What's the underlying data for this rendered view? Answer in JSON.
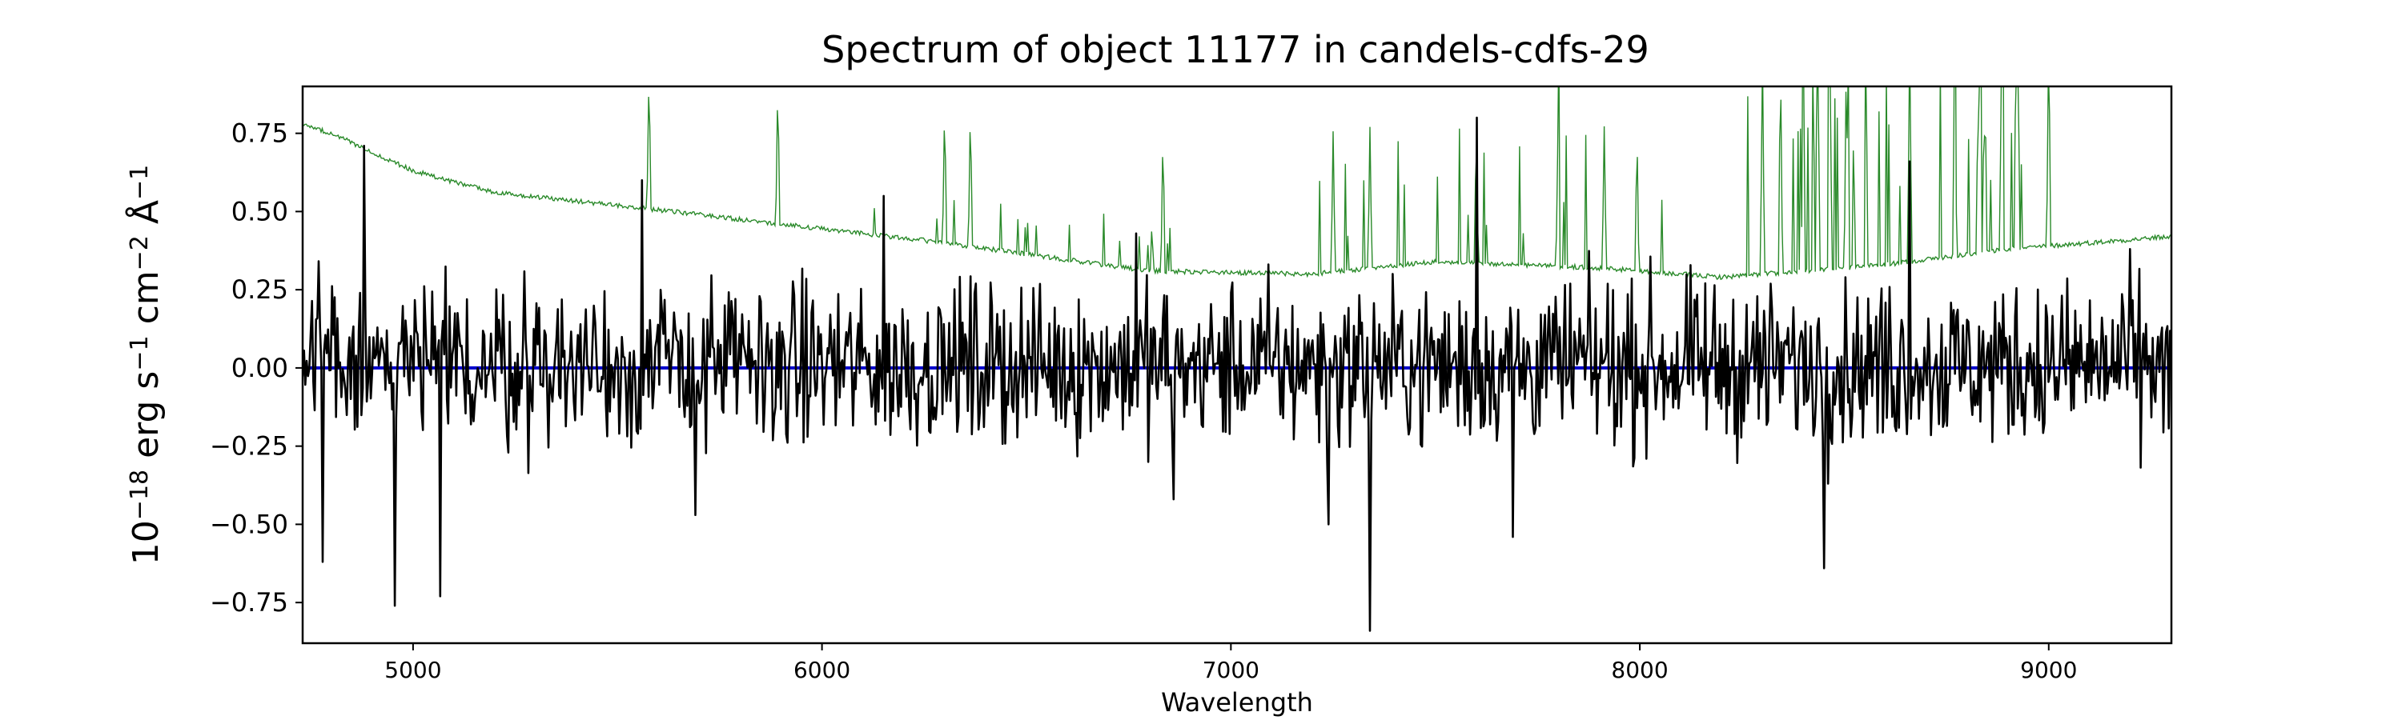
{
  "chart_data": {
    "type": "line",
    "title": "Spectrum of object 11177 in candels-cdfs-29",
    "xlabel": "Wavelength",
    "ylabel_base": "10",
    "ylabel_exp": "−18",
    "ylabel_units": [
      "erg",
      "s",
      "−1",
      "cm",
      "−2",
      "Å",
      "−1"
    ],
    "xlim": [
      4730,
      9300
    ],
    "ylim": [
      -0.88,
      0.9
    ],
    "xticks": [
      5000,
      6000,
      7000,
      8000,
      9000
    ],
    "xtick_labels": [
      "5000",
      "6000",
      "7000",
      "8000",
      "9000"
    ],
    "yticks": [
      -0.75,
      -0.5,
      -0.25,
      0.0,
      0.25,
      0.5,
      0.75
    ],
    "ytick_labels": [
      "−0.75",
      "−0.50",
      "−0.25",
      "0.00",
      "0.25",
      "0.50",
      "0.75"
    ],
    "grid": false,
    "series": [
      {
        "role": "flux",
        "color": "#000000",
        "x_range": [
          4730,
          9300
        ],
        "n_points": 1400,
        "noise_rms": 0.2,
        "notable_points": [
          {
            "x": 4780,
            "y": -0.62
          },
          {
            "x": 4880,
            "y": 0.71
          },
          {
            "x": 4955,
            "y": -0.76
          },
          {
            "x": 5065,
            "y": -0.73
          },
          {
            "x": 5560,
            "y": 0.6
          },
          {
            "x": 5690,
            "y": -0.47
          },
          {
            "x": 6150,
            "y": 0.55
          },
          {
            "x": 6770,
            "y": 0.43
          },
          {
            "x": 6860,
            "y": -0.42
          },
          {
            "x": 7240,
            "y": -0.5
          },
          {
            "x": 7340,
            "y": -0.84
          },
          {
            "x": 7600,
            "y": 0.8
          },
          {
            "x": 7690,
            "y": -0.54
          },
          {
            "x": 8450,
            "y": -0.64
          },
          {
            "x": 8660,
            "y": 0.66
          },
          {
            "x": 9200,
            "y": 0.38
          }
        ]
      },
      {
        "role": "error",
        "color": "#2a8a2a",
        "x_range": [
          4730,
          9300
        ],
        "continuum": [
          [
            4730,
            0.78
          ],
          [
            4800,
            0.75
          ],
          [
            5000,
            0.63
          ],
          [
            5200,
            0.56
          ],
          [
            5500,
            0.52
          ],
          [
            5900,
            0.46
          ],
          [
            6300,
            0.4
          ],
          [
            6800,
            0.31
          ],
          [
            7200,
            0.3
          ],
          [
            7500,
            0.34
          ],
          [
            7900,
            0.32
          ],
          [
            8200,
            0.29
          ],
          [
            8600,
            0.33
          ],
          [
            8900,
            0.38
          ],
          [
            9300,
            0.42
          ]
        ],
        "sky_lines": [
          5577,
          5892,
          6300,
          6363,
          6834,
          7250,
          7340,
          7600,
          7800,
          7913,
          7993,
          8300,
          8344,
          8400,
          8465,
          8505,
          8660,
          8770,
          8830,
          8885,
          8920,
          9000
        ]
      },
      {
        "role": "zero",
        "color": "#0000cc",
        "x": [
          4730,
          9300
        ],
        "values": [
          0,
          0
        ]
      }
    ]
  }
}
